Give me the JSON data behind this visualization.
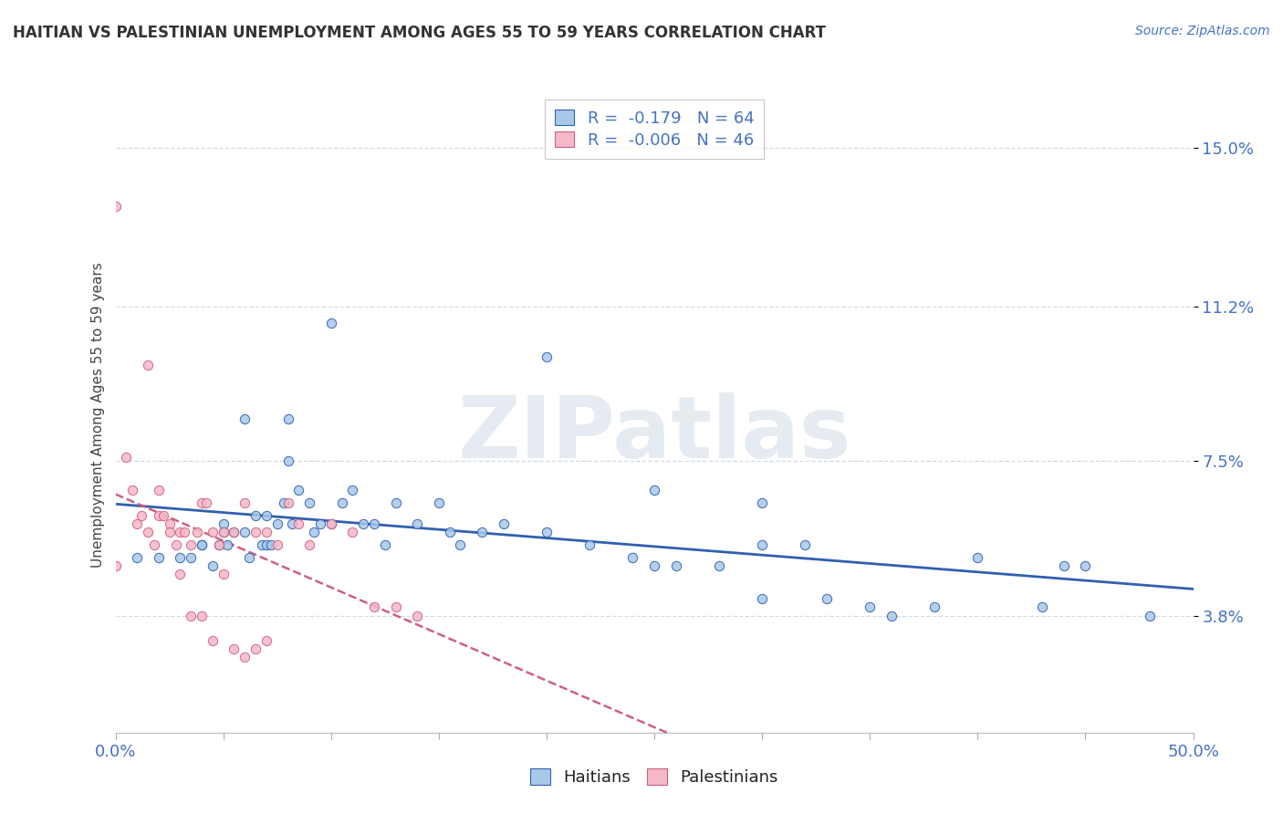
{
  "title": "HAITIAN VS PALESTINIAN UNEMPLOYMENT AMONG AGES 55 TO 59 YEARS CORRELATION CHART",
  "source": "Source: ZipAtlas.com",
  "ylabel": "Unemployment Among Ages 55 to 59 years",
  "xlim": [
    0.0,
    0.5
  ],
  "ylim": [
    0.01,
    0.162
  ],
  "xticks": [
    0.0,
    0.05,
    0.1,
    0.15,
    0.2,
    0.25,
    0.3,
    0.35,
    0.4,
    0.45,
    0.5
  ],
  "yticks": [
    0.038,
    0.075,
    0.112,
    0.15
  ],
  "yticklabels": [
    "3.8%",
    "7.5%",
    "11.2%",
    "15.0%"
  ],
  "haitian_color": "#a8c8e8",
  "haitian_line_color": "#3060b0",
  "palestinian_color": "#f4b8c8",
  "palestinian_line_color": "#d06080",
  "haitian_R": "-0.179",
  "haitian_N": "64",
  "palestinian_R": "-0.006",
  "palestinian_N": "46",
  "watermark": "ZIPatlas",
  "background_color": "#ffffff",
  "grid_color": "#d0dce8",
  "title_color": "#333333",
  "label_color": "#4472c4",
  "source_color": "#4472c4",
  "haitian_x": [
    0.01,
    0.02,
    0.03,
    0.035,
    0.04,
    0.04,
    0.045,
    0.048,
    0.05,
    0.05,
    0.052,
    0.055,
    0.06,
    0.062,
    0.065,
    0.068,
    0.07,
    0.07,
    0.072,
    0.075,
    0.078,
    0.08,
    0.082,
    0.085,
    0.09,
    0.092,
    0.095,
    0.1,
    0.105,
    0.11,
    0.115,
    0.12,
    0.125,
    0.13,
    0.14,
    0.15,
    0.155,
    0.16,
    0.17,
    0.18,
    0.2,
    0.22,
    0.24,
    0.25,
    0.26,
    0.28,
    0.3,
    0.3,
    0.32,
    0.33,
    0.35,
    0.36,
    0.38,
    0.4,
    0.43,
    0.44,
    0.45,
    0.48,
    0.2,
    0.1,
    0.25,
    0.08,
    0.06,
    0.3
  ],
  "haitian_y": [
    0.052,
    0.052,
    0.052,
    0.052,
    0.055,
    0.055,
    0.05,
    0.055,
    0.06,
    0.058,
    0.055,
    0.058,
    0.058,
    0.052,
    0.062,
    0.055,
    0.062,
    0.055,
    0.055,
    0.06,
    0.065,
    0.075,
    0.06,
    0.068,
    0.065,
    0.058,
    0.06,
    0.06,
    0.065,
    0.068,
    0.06,
    0.06,
    0.055,
    0.065,
    0.06,
    0.065,
    0.058,
    0.055,
    0.058,
    0.06,
    0.058,
    0.055,
    0.052,
    0.05,
    0.05,
    0.05,
    0.042,
    0.055,
    0.055,
    0.042,
    0.04,
    0.038,
    0.04,
    0.052,
    0.04,
    0.05,
    0.05,
    0.038,
    0.1,
    0.108,
    0.068,
    0.085,
    0.085,
    0.065
  ],
  "palestinian_x": [
    0.0,
    0.0,
    0.005,
    0.008,
    0.01,
    0.012,
    0.015,
    0.018,
    0.02,
    0.022,
    0.025,
    0.028,
    0.03,
    0.032,
    0.035,
    0.038,
    0.04,
    0.042,
    0.045,
    0.048,
    0.05,
    0.055,
    0.06,
    0.065,
    0.07,
    0.075,
    0.08,
    0.085,
    0.09,
    0.1,
    0.11,
    0.12,
    0.13,
    0.14,
    0.015,
    0.02,
    0.025,
    0.03,
    0.035,
    0.04,
    0.045,
    0.05,
    0.055,
    0.06,
    0.065,
    0.07
  ],
  "palestinian_y": [
    0.05,
    0.136,
    0.076,
    0.068,
    0.06,
    0.062,
    0.058,
    0.055,
    0.062,
    0.062,
    0.06,
    0.055,
    0.058,
    0.058,
    0.055,
    0.058,
    0.065,
    0.065,
    0.058,
    0.055,
    0.058,
    0.058,
    0.065,
    0.058,
    0.058,
    0.055,
    0.065,
    0.06,
    0.055,
    0.06,
    0.058,
    0.04,
    0.04,
    0.038,
    0.098,
    0.068,
    0.058,
    0.048,
    0.038,
    0.038,
    0.032,
    0.048,
    0.03,
    0.028,
    0.03,
    0.032
  ]
}
